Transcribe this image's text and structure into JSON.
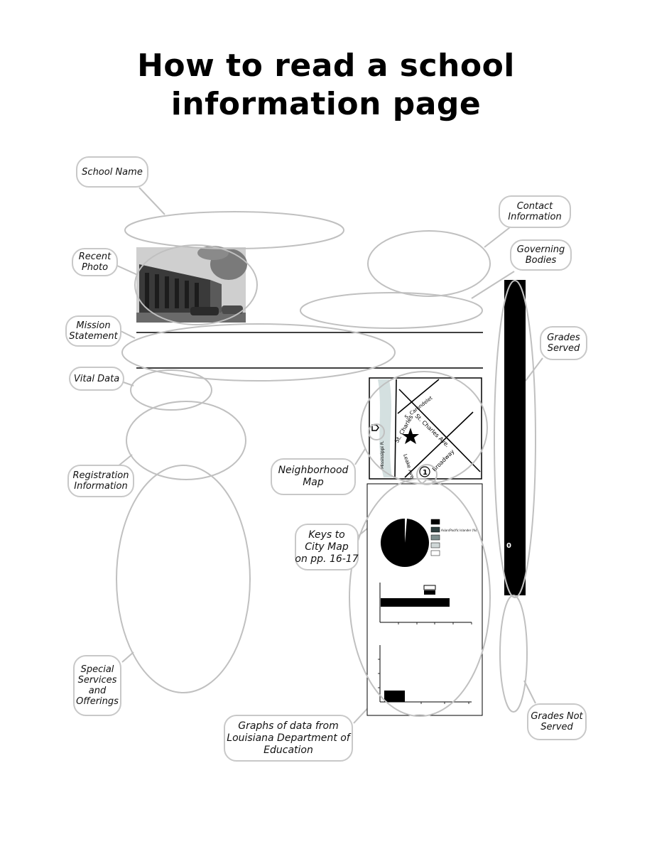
{
  "title": {
    "line1": "How to read a school",
    "line2": "information page"
  },
  "callouts": {
    "school_name": [
      "School Name"
    ],
    "recent_photo": [
      "Recent",
      "Photo"
    ],
    "mission_statement": [
      "Mission",
      "Statement"
    ],
    "vital_data": [
      "Vital Data"
    ],
    "registration_information": [
      "Registration",
      "Information"
    ],
    "special_services": [
      "Special",
      "Services",
      "and",
      "Offerings"
    ],
    "contact_information": [
      "Contact",
      "Information"
    ],
    "governing_bodies": [
      "Governing",
      "Bodies"
    ],
    "grades_served": [
      "Grades",
      "Served"
    ],
    "neighborhood_map": [
      "Neighborhood",
      "Map"
    ],
    "keys_to_city_map": [
      "Keys to",
      "City Map",
      "on pp. 16-17"
    ],
    "graphs_of_data": [
      "Graphs of data from",
      "Louisiana Department of",
      "Education"
    ],
    "grades_not_served": [
      "Grades Not",
      "Served"
    ]
  },
  "map": {
    "streets": {
      "st_charles": "St. Charles Ave.",
      "carondelet": "S. Carondelet",
      "broadway": "Broadway",
      "leake": "Leake Ave.",
      "st_claude": "St. Charles",
      "river": "Mississippi R."
    },
    "key_number": "1"
  },
  "pie_legend": {
    "label": "Asian/Pacific Islander (%)"
  },
  "grades_bar": {
    "value_label": "0"
  },
  "colors": {
    "ellipse": "#c0c0c0",
    "callout_border": "#c8c8c8",
    "bar": "#000000",
    "river": "#d4e0e0"
  },
  "icons": {
    "photo": "school-building-photo",
    "map_marker": "school-star-icon",
    "compass": "compass-icon"
  }
}
